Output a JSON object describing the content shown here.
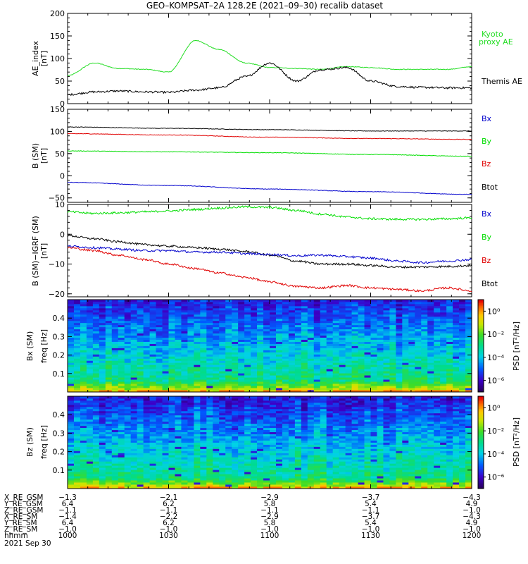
{
  "title": "GEO–KOMPSAT–2A 128.2E (2021–09–30) recalib dataset",
  "colors": {
    "black": "#000000",
    "red": "#e00000",
    "green": "#00dd00",
    "blue": "#0000cc",
    "kyoto": "#22dd22"
  },
  "chart_data": [
    {
      "type": "line",
      "ylabel": "AE_index",
      "yunit": "[nT]",
      "ylim": [
        0,
        200
      ],
      "yticks": [
        "0",
        "50",
        "100",
        "150",
        "200"
      ],
      "yticks_v": [
        0,
        50,
        100,
        150,
        200
      ],
      "x": [
        1000,
        1008,
        1015,
        1023,
        1030,
        1038,
        1045,
        1053,
        1100,
        1108,
        1115,
        1123,
        1130,
        1138,
        1145,
        1153,
        1200
      ],
      "series": [
        {
          "name": "Kyoto proxy AE",
          "label_lines": [
            "Kyoto",
            "proxy AE"
          ],
          "color": "#22dd22",
          "values": [
            62,
            90,
            78,
            76,
            70,
            140,
            120,
            90,
            80,
            78,
            76,
            82,
            80,
            76,
            76,
            76,
            82
          ]
        },
        {
          "name": "Themis AE",
          "label_lines": [
            "Themis AE"
          ],
          "color": "#000000",
          "values": [
            20,
            26,
            28,
            26,
            25,
            30,
            35,
            60,
            90,
            50,
            75,
            80,
            50,
            38,
            36,
            35,
            35
          ]
        }
      ]
    },
    {
      "type": "line",
      "ylabel": "B (SM)",
      "yunit": "[nT]",
      "ylim": [
        -60,
        150
      ],
      "yticks": [
        "−50",
        "0",
        "50",
        "100",
        "150"
      ],
      "yticks_v": [
        -50,
        0,
        50,
        100,
        150
      ],
      "x": [
        1000,
        1030,
        1100,
        1130,
        1200
      ],
      "legend": [
        {
          "label": "Bx",
          "color": "#0000cc"
        },
        {
          "label": "By",
          "color": "#00dd00"
        },
        {
          "label": "Bz",
          "color": "#e00000"
        },
        {
          "label": "Btot",
          "color": "#000000"
        }
      ],
      "series": [
        {
          "color": "#000000",
          "values": [
            110,
            107,
            104,
            101,
            101
          ]
        },
        {
          "color": "#e00000",
          "values": [
            95,
            92,
            87,
            84,
            82
          ]
        },
        {
          "color": "#00dd00",
          "values": [
            56,
            54,
            52,
            48,
            44
          ]
        },
        {
          "color": "#0000cc",
          "values": [
            -15,
            -22,
            -30,
            -36,
            -42
          ]
        }
      ]
    },
    {
      "type": "line",
      "ylabel": "B (SM)−IGRF (SM)",
      "yunit": "[nT]",
      "ylim": [
        -21,
        10
      ],
      "yticks": [
        "−20",
        "−10",
        "0",
        "10"
      ],
      "yticks_v": [
        -20,
        -10,
        0,
        10
      ],
      "x": [
        1000,
        1008,
        1015,
        1023,
        1030,
        1038,
        1045,
        1053,
        1100,
        1108,
        1115,
        1123,
        1130,
        1138,
        1145,
        1153,
        1200
      ],
      "legend": [
        {
          "label": "Bx",
          "color": "#0000cc"
        },
        {
          "label": "By",
          "color": "#00dd00"
        },
        {
          "label": "Bz",
          "color": "#e00000"
        },
        {
          "label": "Btot",
          "color": "#000000"
        }
      ],
      "series": [
        {
          "color": "#00dd00",
          "values": [
            7.5,
            7.0,
            7.2,
            7.5,
            7.8,
            8.3,
            8.8,
            9.2,
            9.0,
            8.0,
            6.8,
            5.8,
            5.2,
            5.0,
            5.0,
            5.2,
            5.5
          ]
        },
        {
          "color": "#000000",
          "values": [
            -0.5,
            -1.5,
            -2.5,
            -3.5,
            -4.0,
            -4.5,
            -5.0,
            -5.8,
            -7.0,
            -9.0,
            -10.0,
            -10.0,
            -10.5,
            -11.0,
            -11.0,
            -10.8,
            -10.5
          ]
        },
        {
          "color": "#0000cc",
          "values": [
            -4.0,
            -4.5,
            -5.0,
            -5.5,
            -5.5,
            -6.0,
            -6.0,
            -6.5,
            -6.8,
            -7.2,
            -7.0,
            -7.5,
            -8.0,
            -9.0,
            -9.5,
            -9.0,
            -8.5
          ]
        },
        {
          "color": "#e00000",
          "values": [
            -4.5,
            -5.5,
            -7.0,
            -8.5,
            -10.0,
            -11.5,
            -13.0,
            -14.5,
            -16.0,
            -17.5,
            -18.0,
            -17.2,
            -18.0,
            -18.5,
            -19.0,
            -18.0,
            -19.0
          ]
        }
      ]
    },
    {
      "type": "heatmap",
      "ylabel": "Bx (SM)",
      "yunit": "freq [Hz]",
      "ylim": [
        0,
        0.5
      ],
      "yticks": [
        "0.1",
        "0.2",
        "0.3",
        "0.4"
      ],
      "yticks_v": [
        0.1,
        0.2,
        0.3,
        0.4
      ],
      "colorbar_label": "PSD [nT²/Hz]",
      "colorbar_ticks": [
        "10⁰",
        "10⁻²",
        "10⁻⁴",
        "10⁻⁶"
      ],
      "colorbar_range_log": [
        -7,
        1
      ]
    },
    {
      "type": "heatmap",
      "ylabel": "Bz (SM)",
      "yunit": "freq [Hz]",
      "ylim": [
        0,
        0.5
      ],
      "yticks": [
        "0.1",
        "0.2",
        "0.3",
        "0.4"
      ],
      "yticks_v": [
        0.1,
        0.2,
        0.3,
        0.4
      ],
      "colorbar_label": "PSD [nT²/Hz]",
      "colorbar_ticks": [
        "10⁰",
        "10⁻²",
        "10⁻⁴",
        "10⁻⁶"
      ],
      "colorbar_range_log": [
        -7,
        1
      ]
    }
  ],
  "ephemeris": {
    "row_labels": [
      "X_RE_GSM",
      "Y_RE_GSM",
      "Z_RE_GSM",
      "X_RE_SM",
      "Y_RE_SM",
      "Z_RE_SM",
      "hhmm"
    ],
    "columns": [
      [
        "−1.3",
        "6.4",
        "−1.1",
        "−1.4",
        "6.4",
        "−1.0",
        "1000"
      ],
      [
        "−2.1",
        "6.2",
        "−1.1",
        "−2.2",
        "6.2",
        "−1.0",
        "1030"
      ],
      [
        "−2.9",
        "5.8",
        "−1.1",
        "−2.9",
        "5.8",
        "−1.0",
        "1100"
      ],
      [
        "−3.7",
        "5.4",
        "−1.1",
        "−3.7",
        "5.4",
        "−1.0",
        "1130"
      ],
      [
        "−4.3",
        "4.9",
        "−1.0",
        "−4.3",
        "4.9",
        "−1.0",
        "1200"
      ]
    ],
    "date": "2021 Sep 30"
  }
}
